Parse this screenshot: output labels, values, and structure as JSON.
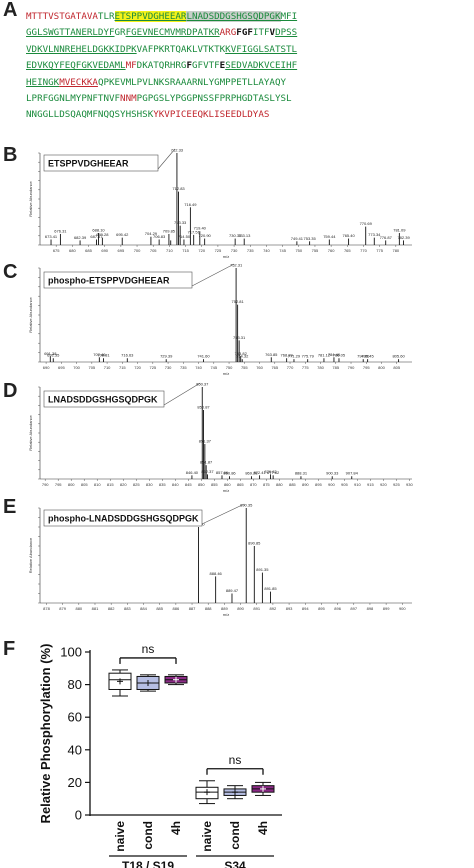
{
  "panels": {
    "a": "A",
    "b": "B",
    "c": "C",
    "d": "D",
    "e": "E",
    "f": "F"
  },
  "sequence": [
    [
      {
        "t": "MTTTVSTGATAVA",
        "c": "red"
      },
      {
        "t": "TLR",
        "c": "green"
      },
      {
        "t": "ETSPPVDGHEEAR",
        "c": "green",
        "hl": "y",
        "u": true
      },
      {
        "t": "LNADSDDGSHGSQDPGK",
        "c": "green",
        "hl": "g",
        "u": true
      },
      {
        "t": "MFI",
        "c": "green",
        "u": true
      }
    ],
    [
      {
        "t": "GGLSWGTTANERLDYF",
        "c": "green",
        "u": true
      },
      {
        "t": "GR",
        "c": "green"
      },
      {
        "t": "FGEVNECMVMRDPATKR",
        "c": "green",
        "u": true
      },
      {
        "t": "AR",
        "c": "red"
      },
      {
        "t": "G",
        "c": "red"
      },
      {
        "t": "F",
        "c": "black"
      },
      {
        "t": "G",
        "c": "black"
      },
      {
        "t": "F",
        "c": "black"
      },
      {
        "t": "ITF",
        "c": "green"
      },
      {
        "t": "V",
        "c": "black"
      },
      {
        "t": "DPSS",
        "c": "green",
        "u": true
      }
    ],
    [
      {
        "t": "VDKVLNNREHELDGKKIDPK",
        "c": "green",
        "u": true
      },
      {
        "t": "VAFPKRTQAKLVTKTK",
        "c": "green"
      },
      {
        "t": "KVFIGGLSATSTL",
        "c": "green",
        "u": true
      }
    ],
    [
      {
        "t": "EDVKQYFEQFGKVEDAML",
        "c": "green",
        "u": true
      },
      {
        "t": "MF",
        "c": "red"
      },
      {
        "t": "DKATQRHRG",
        "c": "green"
      },
      {
        "t": "F",
        "c": "black"
      },
      {
        "t": "GFVTF",
        "c": "green"
      },
      {
        "t": "E",
        "c": "black"
      },
      {
        "t": "SEDVADKVCEIHF",
        "c": "green",
        "u": true
      }
    ],
    [
      {
        "t": "HEINGK",
        "c": "green",
        "u": true
      },
      {
        "t": "MVECKKA",
        "c": "red",
        "u": true
      },
      {
        "t": "QPKEVMLPVLNKSRAAARNLYGMPPETLLAYAQY",
        "c": "green"
      }
    ],
    [
      {
        "t": "LPRFGGNLMYPNFTNVF",
        "c": "green"
      },
      {
        "t": "NNM",
        "c": "red"
      },
      {
        "t": "PGPGSLYPGGPNSSFPRPHGDTASLYSL",
        "c": "green"
      }
    ],
    [
      {
        "t": "NNGGLLDSQAQMFNQQSYHSHSK",
        "c": "green"
      },
      {
        "t": "YKVPICEEQKLISEEDLDYAS",
        "c": "red"
      }
    ]
  ],
  "spectra": [
    {
      "title": "ETSPPVDGHEEAR",
      "ylabel": "Relative Abundance",
      "xlabel": "m/z",
      "xlim": [
        670,
        785
      ],
      "xticks": [
        "675",
        "680",
        "685",
        "690",
        "695",
        "700",
        "705",
        "710",
        "715",
        "720",
        "725",
        "730",
        "735",
        "740",
        "745",
        "750",
        "755",
        "760",
        "765",
        "770",
        "775",
        "780"
      ],
      "base_peak_label": "712.33",
      "peaks": [
        {
          "mz": 673.41,
          "rel": 6,
          "label": "673.41"
        },
        {
          "mz": 676.31,
          "rel": 12,
          "label": "676.31"
        },
        {
          "mz": 682.39,
          "rel": 5,
          "label": "682.39"
        },
        {
          "mz": 687.47,
          "rel": 6,
          "label": "687.47"
        },
        {
          "mz": 688.1,
          "rel": 13,
          "label": "688.10"
        },
        {
          "mz": 689.28,
          "rel": 8,
          "label": "689.28"
        },
        {
          "mz": 695.42,
          "rel": 8,
          "label": "695.42"
        },
        {
          "mz": 704.29,
          "rel": 9,
          "label": "704.29"
        },
        {
          "mz": 706.83,
          "rel": 6,
          "label": "706.83"
        },
        {
          "mz": 709.85,
          "rel": 12,
          "label": "709.85"
        },
        {
          "mz": 710.41,
          "rel": 5,
          "label": ""
        },
        {
          "mz": 712.33,
          "rel": 100,
          "label": "712.33"
        },
        {
          "mz": 712.83,
          "rel": 58,
          "label": "712.83"
        },
        {
          "mz": 713.33,
          "rel": 21,
          "label": "713.33"
        },
        {
          "mz": 714.5,
          "rel": 6,
          "label": "714.50"
        },
        {
          "mz": 716.49,
          "rel": 41,
          "label": "716.49"
        },
        {
          "mz": 717.51,
          "rel": 11,
          "label": "717.51"
        },
        {
          "mz": 719.4,
          "rel": 15,
          "label": "719.40"
        },
        {
          "mz": 720.9,
          "rel": 7,
          "label": "720.90"
        },
        {
          "mz": 730.33,
          "rel": 7,
          "label": "730.33"
        },
        {
          "mz": 733.13,
          "rel": 7,
          "label": "733.13"
        },
        {
          "mz": 749.41,
          "rel": 4,
          "label": "749.41"
        },
        {
          "mz": 753.35,
          "rel": 4,
          "label": "753.35"
        },
        {
          "mz": 759.44,
          "rel": 6,
          "label": "759.44"
        },
        {
          "mz": 765.4,
          "rel": 7,
          "label": "765.40"
        },
        {
          "mz": 770.69,
          "rel": 20,
          "label": "770.69"
        },
        {
          "mz": 773.34,
          "rel": 8,
          "label": "773.34"
        },
        {
          "mz": 776.87,
          "rel": 5,
          "label": "776.87"
        },
        {
          "mz": 781.09,
          "rel": 13,
          "label": "781.09"
        },
        {
          "mz": 782.39,
          "rel": 5,
          "label": "782.39"
        }
      ]
    },
    {
      "title": "phospho-ETSPPVDGHEEAR",
      "ylabel": "Relative Abundance",
      "xlabel": "m/z",
      "xlim": [
        688,
        810
      ],
      "xticks": [
        "690",
        "695",
        "700",
        "705",
        "710",
        "715",
        "720",
        "725",
        "730",
        "735",
        "740",
        "745",
        "750",
        "755",
        "760",
        "765",
        "770",
        "775",
        "780",
        "785",
        "790",
        "795",
        "800",
        "805"
      ],
      "base_peak_label": "752.31",
      "peaks": [
        {
          "mz": 691.38,
          "rel": 6,
          "label": "691.38"
        },
        {
          "mz": 692.35,
          "rel": 4,
          "label": "692.35"
        },
        {
          "mz": 707.46,
          "rel": 5,
          "label": "707.46"
        },
        {
          "mz": 708.81,
          "rel": 4,
          "label": "708.81"
        },
        {
          "mz": 716.63,
          "rel": 4,
          "label": "716.63"
        },
        {
          "mz": 729.39,
          "rel": 3,
          "label": "729.39"
        },
        {
          "mz": 741.6,
          "rel": 3,
          "label": "741.60"
        },
        {
          "mz": 752.31,
          "rel": 100,
          "label": "752.31"
        },
        {
          "mz": 752.81,
          "rel": 61,
          "label": "752.81"
        },
        {
          "mz": 753.31,
          "rel": 23,
          "label": "753.31"
        },
        {
          "mz": 753.82,
          "rel": 6,
          "label": "753.82"
        },
        {
          "mz": 754.32,
          "rel": 3,
          "label": "754.32"
        },
        {
          "mz": 763.85,
          "rel": 5,
          "label": "763.85"
        },
        {
          "mz": 768.89,
          "rel": 4,
          "label": "768.89"
        },
        {
          "mz": 771.29,
          "rel": 3,
          "label": "771.29"
        },
        {
          "mz": 775.79,
          "rel": 3,
          "label": "775.79"
        },
        {
          "mz": 781.12,
          "rel": 4,
          "label": "781.12"
        },
        {
          "mz": 784.4,
          "rel": 5,
          "label": "784.40"
        },
        {
          "mz": 786.05,
          "rel": 4,
          "label": "786.05"
        },
        {
          "mz": 794.0,
          "rel": 3,
          "label": "794.00"
        },
        {
          "mz": 795.45,
          "rel": 3,
          "label": "795.45"
        },
        {
          "mz": 805.6,
          "rel": 3,
          "label": "805.60"
        }
      ]
    },
    {
      "title": "LNADSDDGSHGSQDPGK",
      "ylabel": "Relative Abundance",
      "xlabel": "m/z",
      "xlim": [
        788,
        931
      ],
      "xticks": [
        "790",
        "795",
        "800",
        "805",
        "810",
        "815",
        "820",
        "825",
        "830",
        "835",
        "840",
        "845",
        "850",
        "855",
        "860",
        "865",
        "870",
        "875",
        "880",
        "885",
        "890",
        "895",
        "900",
        "905",
        "910",
        "915",
        "920",
        "925",
        "930"
      ],
      "base_peak_label": "850.37",
      "peaks": [
        {
          "mz": 846.4,
          "rel": 4,
          "label": "846.40"
        },
        {
          "mz": 850.37,
          "rel": 100,
          "label": "850.37"
        },
        {
          "mz": 850.87,
          "rel": 75,
          "label": "850.87"
        },
        {
          "mz": 851.37,
          "rel": 38,
          "label": "851.37"
        },
        {
          "mz": 851.87,
          "rel": 15,
          "label": "851.87"
        },
        {
          "mz": 852.37,
          "rel": 5,
          "label": "852.37"
        },
        {
          "mz": 857.96,
          "rel": 4,
          "label": "857.96"
        },
        {
          "mz": 860.86,
          "rel": 3,
          "label": "860.86"
        },
        {
          "mz": 869.28,
          "rel": 3,
          "label": "869.28"
        },
        {
          "mz": 872.41,
          "rel": 4,
          "label": "872.41"
        },
        {
          "mz": 876.62,
          "rel": 5,
          "label": "876.62"
        },
        {
          "mz": 877.62,
          "rel": 4,
          "label": "877.62"
        },
        {
          "mz": 888.31,
          "rel": 3,
          "label": "888.31"
        },
        {
          "mz": 900.33,
          "rel": 3,
          "label": "900.33"
        },
        {
          "mz": 907.84,
          "rel": 3,
          "label": "907.84"
        }
      ]
    },
    {
      "title": "phospho-LNADSDDGSHGSQDPGK",
      "ylabel": "Relative Abundance",
      "xlabel": "m/z",
      "xlim": [
        877.6,
        900.6
      ],
      "xticks": [
        "878",
        "879",
        "880",
        "881",
        "882",
        "883",
        "884",
        "885",
        "886",
        "887",
        "888",
        "889",
        "890",
        "891",
        "892",
        "893",
        "894",
        "895",
        "896",
        "897",
        "898",
        "899",
        "900"
      ],
      "base_peak_label": "890.35",
      "peaks": [
        {
          "mz": 887.4,
          "rel": 80,
          "label": "887.40"
        },
        {
          "mz": 888.46,
          "rel": 28,
          "label": "888.46"
        },
        {
          "mz": 889.47,
          "rel": 10,
          "label": "889.47"
        },
        {
          "mz": 890.35,
          "rel": 100,
          "label": "890.35"
        },
        {
          "mz": 890.85,
          "rel": 60,
          "label": "890.85"
        },
        {
          "mz": 891.35,
          "rel": 32,
          "label": "891.35"
        },
        {
          "mz": 891.85,
          "rel": 12,
          "label": "891.85"
        }
      ]
    }
  ],
  "chart_data": {
    "type": "box",
    "ylabel": "Relative Phosphorylation (%)",
    "ylim": [
      0,
      100
    ],
    "yticks": [
      "0",
      "20",
      "40",
      "60",
      "80",
      "100"
    ],
    "categories": [
      "naive",
      "cond",
      "4h",
      "naive",
      "cond",
      "4h"
    ],
    "groups": [
      {
        "label": "T18 / S19",
        "members": [
          0,
          1,
          2
        ]
      },
      {
        "label": "S34",
        "members": [
          3,
          4,
          5
        ]
      }
    ],
    "significance": [
      {
        "label": "ns",
        "between": [
          0,
          2
        ]
      },
      {
        "label": "ns",
        "between": [
          3,
          5
        ]
      }
    ],
    "boxes": [
      {
        "min": 73,
        "q1": 77,
        "median": 83,
        "q3": 87,
        "max": 89,
        "mean": 82,
        "fill": "#ffffff"
      },
      {
        "min": 76,
        "q1": 77,
        "median": 81,
        "q3": 85,
        "max": 86,
        "mean": 81,
        "fill": "#b6bee3"
      },
      {
        "min": 80,
        "q1": 81,
        "median": 83,
        "q3": 85,
        "max": 86,
        "mean": 83,
        "fill": "#8b2a86"
      },
      {
        "min": 7,
        "q1": 10,
        "median": 14,
        "q3": 17,
        "max": 21,
        "mean": 14,
        "fill": "#ffffff"
      },
      {
        "min": 10,
        "q1": 12,
        "median": 14,
        "q3": 16,
        "max": 18,
        "mean": 14,
        "fill": "#b6bee3"
      },
      {
        "min": 12,
        "q1": 14,
        "median": 16,
        "q3": 18,
        "max": 20,
        "mean": 16,
        "fill": "#8b2a86"
      }
    ]
  }
}
